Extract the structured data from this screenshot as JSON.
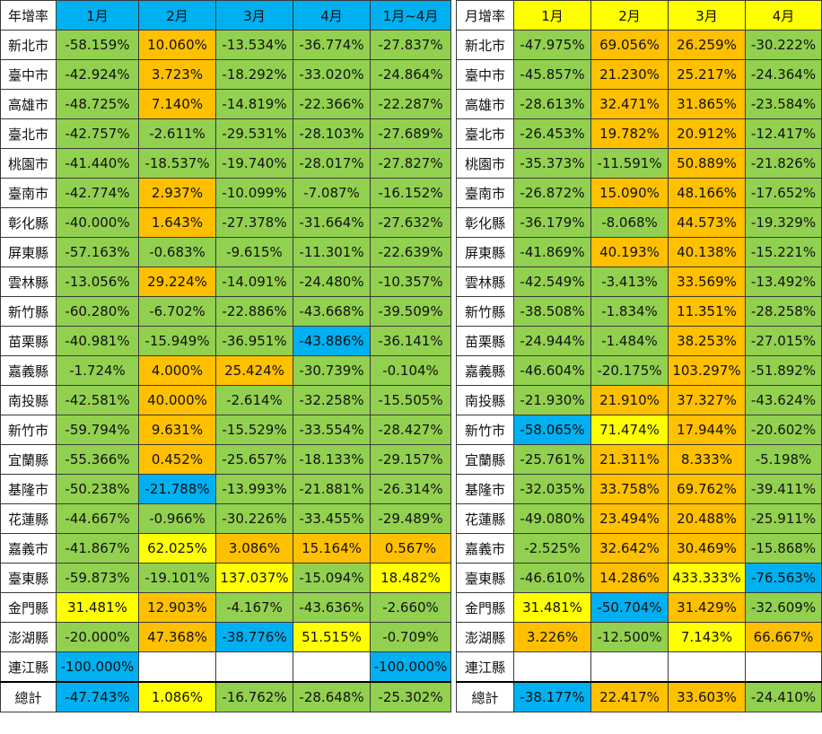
{
  "colors": {
    "g": "#92d050",
    "o": "#ffc000",
    "y": "#ffff00",
    "b": "#00b0f0",
    "w": "#ffffff"
  },
  "left_table": {
    "header": [
      "年增率",
      "1月",
      "2月",
      "3月",
      "4月",
      "1月~4月"
    ],
    "header_colors": [
      "w",
      "b",
      "b",
      "b",
      "b",
      "b"
    ],
    "rows": [
      {
        "name": "新北市",
        "values": [
          "-58.159%",
          "10.060%",
          "-13.534%",
          "-36.774%",
          "-27.837%"
        ],
        "colors": [
          "g",
          "o",
          "g",
          "g",
          "g"
        ]
      },
      {
        "name": "臺中市",
        "values": [
          "-42.924%",
          "3.723%",
          "-18.292%",
          "-33.020%",
          "-24.864%"
        ],
        "colors": [
          "g",
          "o",
          "g",
          "g",
          "g"
        ]
      },
      {
        "name": "高雄市",
        "values": [
          "-48.725%",
          "7.140%",
          "-14.819%",
          "-22.366%",
          "-22.287%"
        ],
        "colors": [
          "g",
          "o",
          "g",
          "g",
          "g"
        ]
      },
      {
        "name": "臺北市",
        "values": [
          "-42.757%",
          "-2.611%",
          "-29.531%",
          "-28.103%",
          "-27.689%"
        ],
        "colors": [
          "g",
          "g",
          "g",
          "g",
          "g"
        ]
      },
      {
        "name": "桃園市",
        "values": [
          "-41.440%",
          "-18.537%",
          "-19.740%",
          "-28.017%",
          "-27.827%"
        ],
        "colors": [
          "g",
          "g",
          "g",
          "g",
          "g"
        ]
      },
      {
        "name": "臺南市",
        "values": [
          "-42.774%",
          "2.937%",
          "-10.099%",
          "-7.087%",
          "-16.152%"
        ],
        "colors": [
          "g",
          "o",
          "g",
          "g",
          "g"
        ]
      },
      {
        "name": "彰化縣",
        "values": [
          "-40.000%",
          "1.643%",
          "-27.378%",
          "-31.664%",
          "-27.632%"
        ],
        "colors": [
          "g",
          "o",
          "g",
          "g",
          "g"
        ]
      },
      {
        "name": "屏東縣",
        "values": [
          "-57.163%",
          "-0.683%",
          "-9.615%",
          "-11.301%",
          "-22.639%"
        ],
        "colors": [
          "g",
          "g",
          "g",
          "g",
          "g"
        ]
      },
      {
        "name": "雲林縣",
        "values": [
          "-13.056%",
          "29.224%",
          "-14.091%",
          "-24.480%",
          "-10.357%"
        ],
        "colors": [
          "g",
          "o",
          "g",
          "g",
          "g"
        ]
      },
      {
        "name": "新竹縣",
        "values": [
          "-60.280%",
          "-6.702%",
          "-22.886%",
          "-43.668%",
          "-39.509%"
        ],
        "colors": [
          "g",
          "g",
          "g",
          "g",
          "g"
        ]
      },
      {
        "name": "苗栗縣",
        "values": [
          "-40.981%",
          "-15.949%",
          "-36.951%",
          "-43.886%",
          "-36.141%"
        ],
        "colors": [
          "g",
          "g",
          "g",
          "b",
          "g"
        ]
      },
      {
        "name": "嘉義縣",
        "values": [
          "-1.724%",
          "4.000%",
          "25.424%",
          "-30.739%",
          "-0.104%"
        ],
        "colors": [
          "g",
          "o",
          "o",
          "g",
          "g"
        ]
      },
      {
        "name": "南投縣",
        "values": [
          "-42.581%",
          "40.000%",
          "-2.614%",
          "-32.258%",
          "-15.505%"
        ],
        "colors": [
          "g",
          "o",
          "g",
          "g",
          "g"
        ]
      },
      {
        "name": "新竹市",
        "values": [
          "-59.794%",
          "9.631%",
          "-15.529%",
          "-33.554%",
          "-28.427%"
        ],
        "colors": [
          "g",
          "o",
          "g",
          "g",
          "g"
        ]
      },
      {
        "name": "宜蘭縣",
        "values": [
          "-55.366%",
          "0.452%",
          "-25.657%",
          "-18.133%",
          "-29.157%"
        ],
        "colors": [
          "g",
          "o",
          "g",
          "g",
          "g"
        ]
      },
      {
        "name": "基隆市",
        "values": [
          "-50.238%",
          "-21.788%",
          "-13.993%",
          "-21.881%",
          "-26.314%"
        ],
        "colors": [
          "g",
          "b",
          "g",
          "g",
          "g"
        ]
      },
      {
        "name": "花蓮縣",
        "values": [
          "-44.667%",
          "-0.966%",
          "-30.226%",
          "-33.455%",
          "-29.489%"
        ],
        "colors": [
          "g",
          "g",
          "g",
          "g",
          "g"
        ]
      },
      {
        "name": "嘉義市",
        "values": [
          "-41.867%",
          "62.025%",
          "3.086%",
          "15.164%",
          "0.567%"
        ],
        "colors": [
          "g",
          "y",
          "o",
          "o",
          "o"
        ]
      },
      {
        "name": "臺東縣",
        "values": [
          "-59.873%",
          "-19.101%",
          "137.037%",
          "-15.094%",
          "18.482%"
        ],
        "colors": [
          "g",
          "g",
          "y",
          "g",
          "y"
        ]
      },
      {
        "name": "金門縣",
        "values": [
          "31.481%",
          "12.903%",
          "-4.167%",
          "-43.636%",
          "-2.660%"
        ],
        "colors": [
          "y",
          "o",
          "g",
          "g",
          "g"
        ]
      },
      {
        "name": "澎湖縣",
        "values": [
          "-20.000%",
          "47.368%",
          "-38.776%",
          "51.515%",
          "-0.709%"
        ],
        "colors": [
          "g",
          "o",
          "b",
          "y",
          "g"
        ]
      },
      {
        "name": "連江縣",
        "values": [
          "-100.000%",
          "",
          "",
          "",
          "-100.000%"
        ],
        "colors": [
          "b",
          "w",
          "w",
          "w",
          "b"
        ]
      }
    ],
    "total": {
      "name": "總計",
      "values": [
        "-47.743%",
        "1.086%",
        "-16.762%",
        "-28.648%",
        "-25.302%"
      ],
      "colors": [
        "b",
        "y",
        "g",
        "g",
        "g"
      ]
    }
  },
  "right_table": {
    "header": [
      "月增率",
      "1月",
      "2月",
      "3月",
      "4月"
    ],
    "header_colors": [
      "w",
      "y",
      "y",
      "y",
      "y"
    ],
    "rows": [
      {
        "name": "新北市",
        "values": [
          "-47.975%",
          "69.056%",
          "26.259%",
          "-30.222%"
        ],
        "colors": [
          "g",
          "o",
          "o",
          "g"
        ]
      },
      {
        "name": "臺中市",
        "values": [
          "-45.857%",
          "21.230%",
          "25.217%",
          "-24.364%"
        ],
        "colors": [
          "g",
          "o",
          "o",
          "g"
        ]
      },
      {
        "name": "高雄市",
        "values": [
          "-28.613%",
          "32.471%",
          "31.865%",
          "-23.584%"
        ],
        "colors": [
          "g",
          "o",
          "o",
          "g"
        ]
      },
      {
        "name": "臺北市",
        "values": [
          "-26.453%",
          "19.782%",
          "20.912%",
          "-12.417%"
        ],
        "colors": [
          "g",
          "o",
          "o",
          "g"
        ]
      },
      {
        "name": "桃園市",
        "values": [
          "-35.373%",
          "-11.591%",
          "50.889%",
          "-21.826%"
        ],
        "colors": [
          "g",
          "g",
          "o",
          "g"
        ]
      },
      {
        "name": "臺南市",
        "values": [
          "-26.872%",
          "15.090%",
          "48.166%",
          "-17.652%"
        ],
        "colors": [
          "g",
          "o",
          "o",
          "g"
        ]
      },
      {
        "name": "彰化縣",
        "values": [
          "-36.179%",
          "-8.068%",
          "44.573%",
          "-19.329%"
        ],
        "colors": [
          "g",
          "g",
          "o",
          "g"
        ]
      },
      {
        "name": "屏東縣",
        "values": [
          "-41.869%",
          "40.193%",
          "40.138%",
          "-15.221%"
        ],
        "colors": [
          "g",
          "o",
          "o",
          "g"
        ]
      },
      {
        "name": "雲林縣",
        "values": [
          "-42.549%",
          "-3.413%",
          "33.569%",
          "-13.492%"
        ],
        "colors": [
          "g",
          "g",
          "o",
          "g"
        ]
      },
      {
        "name": "新竹縣",
        "values": [
          "-38.508%",
          "-1.834%",
          "11.351%",
          "-28.258%"
        ],
        "colors": [
          "g",
          "g",
          "o",
          "g"
        ]
      },
      {
        "name": "苗栗縣",
        "values": [
          "-24.944%",
          "-1.484%",
          "38.253%",
          "-27.015%"
        ],
        "colors": [
          "g",
          "g",
          "o",
          "g"
        ]
      },
      {
        "name": "嘉義縣",
        "values": [
          "-46.604%",
          "-20.175%",
          "103.297%",
          "-51.892%"
        ],
        "colors": [
          "g",
          "g",
          "o",
          "g"
        ]
      },
      {
        "name": "南投縣",
        "values": [
          "-21.930%",
          "21.910%",
          "37.327%",
          "-43.624%"
        ],
        "colors": [
          "g",
          "o",
          "o",
          "g"
        ]
      },
      {
        "name": "新竹市",
        "values": [
          "-58.065%",
          "71.474%",
          "17.944%",
          "-20.602%"
        ],
        "colors": [
          "b",
          "y",
          "o",
          "g"
        ]
      },
      {
        "name": "宜蘭縣",
        "values": [
          "-25.761%",
          "21.311%",
          "8.333%",
          "-5.198%"
        ],
        "colors": [
          "g",
          "o",
          "o",
          "g"
        ]
      },
      {
        "name": "基隆市",
        "values": [
          "-32.035%",
          "33.758%",
          "69.762%",
          "-39.411%"
        ],
        "colors": [
          "g",
          "o",
          "o",
          "g"
        ]
      },
      {
        "name": "花蓮縣",
        "values": [
          "-49.080%",
          "23.494%",
          "20.488%",
          "-25.911%"
        ],
        "colors": [
          "g",
          "o",
          "o",
          "g"
        ]
      },
      {
        "name": "嘉義市",
        "values": [
          "-2.525%",
          "32.642%",
          "30.469%",
          "-15.868%"
        ],
        "colors": [
          "g",
          "o",
          "o",
          "g"
        ]
      },
      {
        "name": "臺東縣",
        "values": [
          "-46.610%",
          "14.286%",
          "433.333%",
          "-76.563%"
        ],
        "colors": [
          "g",
          "o",
          "y",
          "b"
        ]
      },
      {
        "name": "金門縣",
        "values": [
          "31.481%",
          "-50.704%",
          "31.429%",
          "-32.609%"
        ],
        "colors": [
          "y",
          "b",
          "o",
          "g"
        ]
      },
      {
        "name": "澎湖縣",
        "values": [
          "3.226%",
          "-12.500%",
          "7.143%",
          "66.667%"
        ],
        "colors": [
          "o",
          "g",
          "y",
          "o"
        ]
      },
      {
        "name": "連江縣",
        "values": [
          "",
          "",
          "",
          ""
        ],
        "colors": [
          "w",
          "w",
          "w",
          "w"
        ]
      }
    ],
    "total": {
      "name": "總計",
      "values": [
        "-38.177%",
        "22.417%",
        "33.603%",
        "-24.410%"
      ],
      "colors": [
        "b",
        "o",
        "o",
        "g"
      ]
    }
  }
}
